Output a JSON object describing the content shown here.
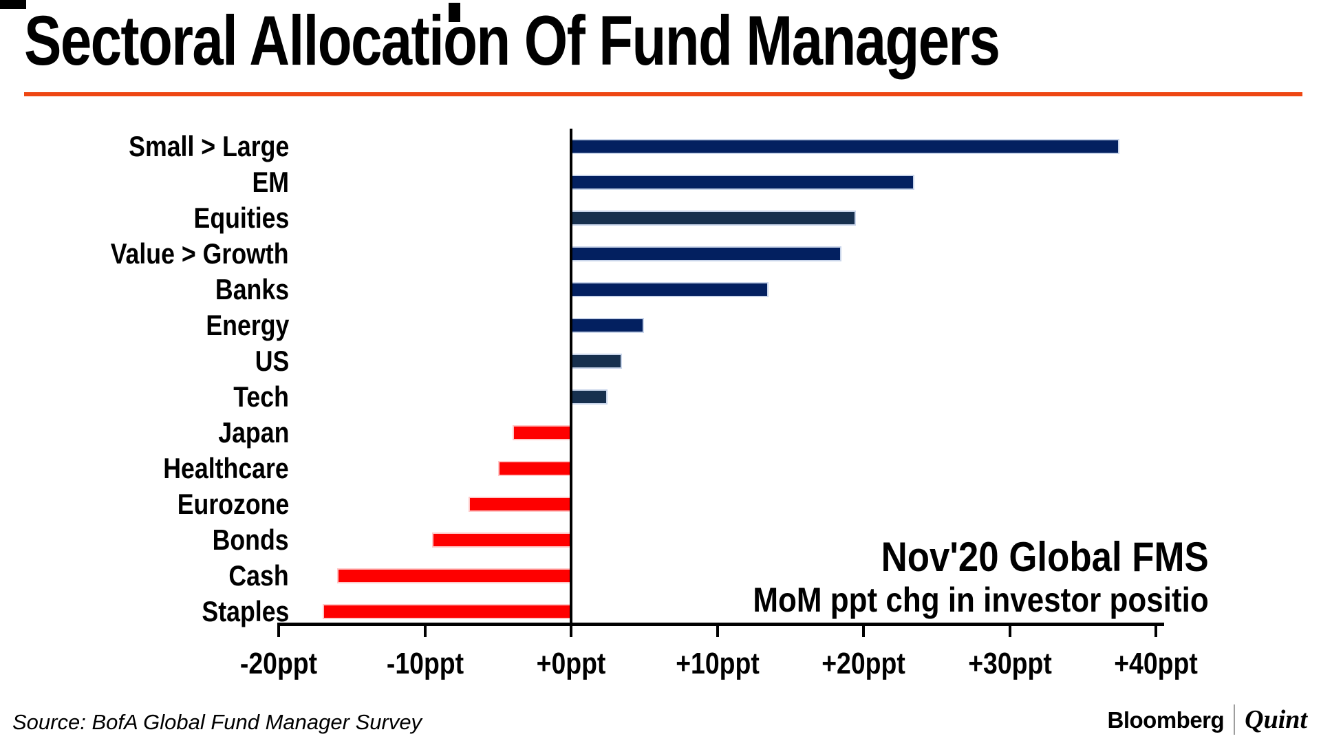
{
  "page_title": "Sectoral Allocation Of Fund Managers",
  "chart_data": {
    "type": "bar",
    "orientation": "horizontal",
    "title": "Sectoral Allocation Of Fund Managers",
    "categories": [
      "Small > Large",
      "EM",
      "Equities",
      "Value > Growth",
      "Banks",
      "Energy",
      "US",
      "Tech",
      "Japan",
      "Healthcare",
      "Eurozone",
      "Bonds",
      "Cash",
      "Staples"
    ],
    "values": [
      37.5,
      23.5,
      19.5,
      18.5,
      13.5,
      5,
      3.5,
      2.5,
      -4,
      -5,
      -7,
      -9.5,
      -16,
      -17
    ],
    "unit": "ppt",
    "xlim": [
      -20,
      40
    ],
    "x_tick_values": [
      -20,
      -10,
      0,
      10,
      20,
      30,
      40
    ],
    "x_tick_labels": [
      "-20ppt",
      "-10ppt",
      "+0ppt",
      "+10ppt",
      "+20ppt",
      "+30ppt",
      "+40ppt"
    ],
    "grid": false,
    "legend": false,
    "annotation": {
      "line1": "Nov'20 Global FMS",
      "line2": "MoM ppt chg in investor positio"
    },
    "bar_colors": {
      "positive": "#032060",
      "positive_muted": "#17304E",
      "negative": "#FE0000"
    },
    "muted_categories": [
      "Equities",
      "US",
      "Tech"
    ]
  },
  "colors": {
    "title_rule": "#EE4713",
    "axis": "#000000",
    "background": "#FFFFFF",
    "positive_bar_border": "#C9D5EA",
    "negative_bar_border": "#FFC9C9"
  },
  "footer": {
    "source": "Source: BofA Global Fund Manager Survey",
    "brand_primary": "Bloomberg",
    "brand_separator": "|",
    "brand_secondary": "Quint"
  }
}
